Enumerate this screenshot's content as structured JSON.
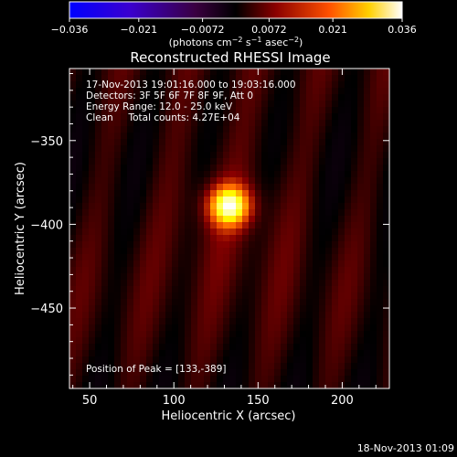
{
  "colorbar": {
    "ticks": [
      "−0.036",
      "−0.021",
      "−0.0072",
      "0.0072",
      "0.021",
      "0.036"
    ],
    "tick_values": [
      -0.036,
      -0.021,
      -0.0072,
      0.0072,
      0.021,
      0.036
    ],
    "unit_main": "(photons cm",
    "unit_exp1": "−2",
    "unit_mid": " s",
    "unit_exp2": "−1",
    "unit_tail": " asec",
    "unit_exp3": "−2",
    "unit_close": ")"
  },
  "title": "Reconstructed RHESSI Image",
  "annotations": {
    "time_range": "17-Nov-2013 19:01:16.000 to 19:03:16.000",
    "detectors": "Detectors: 3F 5F 6F 7F 8F 9F, Att 0",
    "energy": "Energy Range: 12.0 - 25.0 keV",
    "clean": "Clean     Total counts: 4.27E+04",
    "peak": "Position of Peak = [133,-389]"
  },
  "footer_timestamp": "18-Nov-2013 01:09",
  "chart_data": {
    "type": "heatmap",
    "title": "Reconstructed RHESSI Image",
    "xlabel": "Heliocentric X (arcsec)",
    "ylabel": "Heliocentric Y (arcsec)",
    "xlim": [
      38,
      228
    ],
    "ylim": [
      -498,
      -307
    ],
    "xticks": [
      50,
      100,
      150,
      200
    ],
    "xtick_labels": [
      "50",
      "100",
      "150",
      "200"
    ],
    "yticks": [
      -450,
      -400,
      -350
    ],
    "ytick_labels": [
      "−450",
      "−400",
      "−350"
    ],
    "peak": {
      "x": 133,
      "y": -389
    },
    "color_range": [
      -0.036,
      0.036
    ],
    "colormap": [
      "#0000ff",
      "#5000c0",
      "#300030",
      "#000000",
      "#8a0000",
      "#ff6000",
      "#ffff00",
      "#ffffff"
    ],
    "grid": false
  }
}
